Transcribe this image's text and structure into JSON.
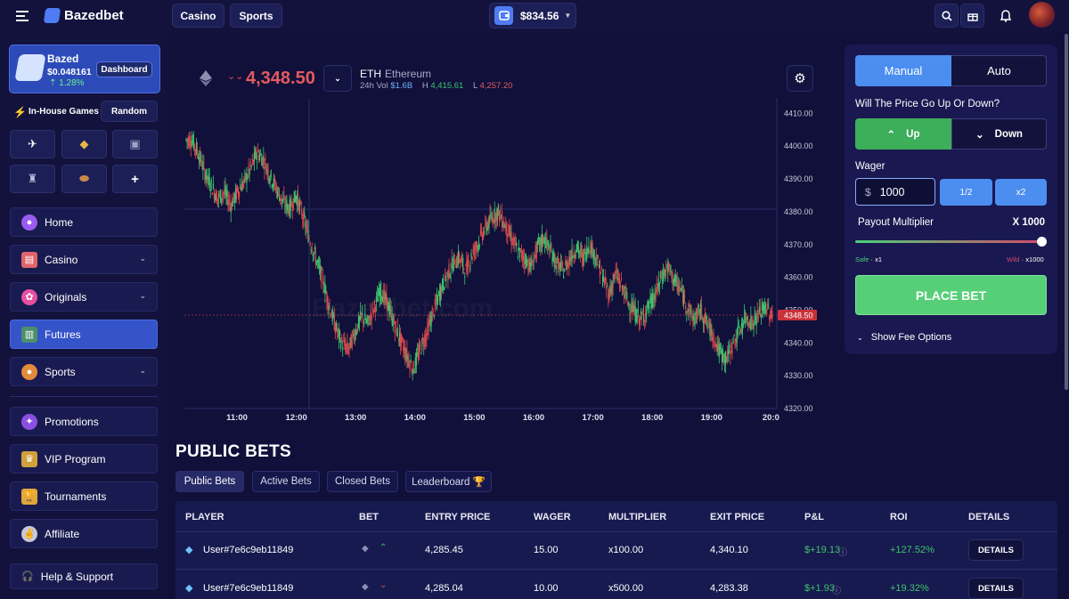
{
  "topbar": {
    "brand": "Bazedbet",
    "nav": [
      "Casino",
      "Sports"
    ],
    "balance": "$834.56"
  },
  "sidebar": {
    "profile": {
      "name": "Bazed",
      "value": "$0.048161",
      "change": "1.28%",
      "dashboard": "Dashboard"
    },
    "inhouse_label": "In-House Games",
    "random_label": "Random",
    "games": [
      "plane-game",
      "mines-game",
      "slot-game",
      "robot-game",
      "football-game",
      "add"
    ],
    "items": [
      {
        "label": "Home",
        "icon": "home-icon",
        "chevron": false,
        "active": false
      },
      {
        "label": "Casino",
        "icon": "casino-icon",
        "chevron": true,
        "active": false
      },
      {
        "label": "Originals",
        "icon": "originals-icon",
        "chevron": true,
        "active": false
      },
      {
        "label": "Futures",
        "icon": "futures-icon",
        "chevron": false,
        "active": true
      },
      {
        "label": "Sports",
        "icon": "sports-icon",
        "chevron": true,
        "active": false
      }
    ],
    "items2": [
      {
        "label": "Promotions",
        "icon": "promotions-icon"
      },
      {
        "label": "VIP Program",
        "icon": "vip-icon"
      },
      {
        "label": "Tournaments",
        "icon": "trophy-icon"
      },
      {
        "label": "Affiliate",
        "icon": "affiliate-icon"
      }
    ],
    "help": "Help & Support"
  },
  "ticker": {
    "price": "4,348.50",
    "symbol": "ETH",
    "name": "Ethereum",
    "vol_label": "24h Vol",
    "vol": "$1.6B",
    "high_label": "H",
    "high": "4,415.61",
    "low_label": "L",
    "low": "4,257.20"
  },
  "chart_data": {
    "type": "candlestick",
    "y_ticks": [
      "4410.00",
      "4400.00",
      "4390.00",
      "4380.00",
      "4370.00",
      "4360.00",
      "4350.00",
      "4340.00",
      "4330.00",
      "4320.00"
    ],
    "x_ticks": [
      "11:00",
      "12:00",
      "13:00",
      "14:00",
      "15:00",
      "16:00",
      "17:00",
      "18:00",
      "19:00",
      "20:0"
    ],
    "last_price_tag": "4348.50",
    "watermark": "Bazedbet.com",
    "ylim": [
      4320,
      4412
    ],
    "up_color": "#3ec46d",
    "down_color": "#e0494d",
    "series": [
      4402,
      4398,
      4392,
      4388,
      4384,
      4386,
      4382,
      4386,
      4389,
      4393,
      4398,
      4396,
      4391,
      4387,
      4383,
      4381,
      4385,
      4379,
      4372,
      4366,
      4360,
      4352,
      4345,
      4340,
      4338,
      4343,
      4348,
      4346,
      4351,
      4356,
      4352,
      4346,
      4341,
      4336,
      4332,
      4338,
      4343,
      4349,
      4355,
      4360,
      4364,
      4366,
      4362,
      4367,
      4371,
      4375,
      4378,
      4380,
      4376,
      4372,
      4368,
      4366,
      4363,
      4369,
      4372,
      4368,
      4364,
      4362,
      4366,
      4369,
      4366,
      4370,
      4366,
      4360,
      4355,
      4361,
      4357,
      4352,
      4349,
      4347,
      4351,
      4354,
      4360,
      4363,
      4359,
      4356,
      4351,
      4347,
      4350,
      4346,
      4342,
      4337,
      4335,
      4340,
      4344,
      4348,
      4346,
      4349,
      4351,
      4348
    ]
  },
  "order_panel": {
    "mode_tabs": [
      "Manual",
      "Auto"
    ],
    "question": "Will The Price Go Up Or Down?",
    "up": "Up",
    "down": "Down",
    "wager_label": "Wager",
    "currency": "$",
    "wager_value": "1000",
    "half": "1/2",
    "double": "x2",
    "payout_label": "Payout Multiplier",
    "payout_value": "X 1000",
    "multiplier": 1000,
    "safe_label": "Safe",
    "safe_value": "· x1",
    "wild_label": "Wild",
    "wild_value": "· x1000",
    "place_bet": "PLACE BET",
    "fee_options": "Show Fee Options"
  },
  "public_bets": {
    "title": "PUBLIC BETS",
    "tabs": [
      "Public Bets",
      "Active Bets",
      "Closed Bets",
      "Leaderboard 🏆"
    ],
    "headers": [
      "PLAYER",
      "BET",
      "ENTRY PRICE",
      "WAGER",
      "MULTIPLIER",
      "EXIT PRICE",
      "P&L",
      "ROI",
      "DETAILS"
    ],
    "rows": [
      {
        "player": "User#7e6c9eb11849",
        "direction": "up",
        "entry": "4,285.45",
        "wager": "15.00",
        "multiplier": "x100.00",
        "exit": "4,340.10",
        "pnl": "$+19.13",
        "roi": "+127.52%",
        "details": "DETAILS"
      },
      {
        "player": "User#7e6c9eb11849",
        "direction": "down",
        "entry": "4,285.04",
        "wager": "10.00",
        "multiplier": "x500.00",
        "exit": "4,283.38",
        "pnl": "$+1.93",
        "roi": "+19.32%",
        "details": "DETAILS"
      }
    ]
  }
}
